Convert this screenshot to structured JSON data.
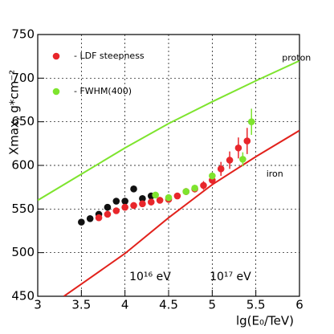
{
  "chart_data": {
    "type": "scatter",
    "ylabel": "Xmax, g*cm⁻²",
    "xlabel": "lg(E₀/TeV)",
    "annotations": [
      {
        "text": "10¹⁶ eV",
        "x": 4.05,
        "y": 472
      },
      {
        "text": "10¹⁷ eV",
        "x": 4.97,
        "y": 472
      },
      {
        "text": "proton",
        "x": 5.8,
        "y": 723
      },
      {
        "text": "iron",
        "x": 5.62,
        "y": 590
      }
    ],
    "xlim": [
      3,
      6
    ],
    "xticks": [
      3,
      3.5,
      4,
      4.5,
      5,
      5.5,
      6
    ],
    "ylim": [
      450,
      750
    ],
    "yticks": [
      450,
      500,
      550,
      600,
      650,
      700,
      750
    ],
    "grid": true,
    "series": [
      {
        "mode": "line",
        "color": "#7ee42e",
        "x": [
          3,
          3.5,
          4,
          4.5,
          5,
          5.5,
          6
        ],
        "values": [
          560,
          590,
          620,
          648,
          673,
          697,
          720
        ]
      },
      {
        "mode": "line",
        "color": "#e2221c",
        "x": [
          3.3,
          3.5,
          4,
          4.5,
          5,
          5.5,
          6
        ],
        "values": [
          450,
          464,
          499,
          540,
          578,
          610,
          640
        ]
      },
      {
        "mode": "markers",
        "color": "#111111",
        "x": [
          3.5,
          3.6,
          3.7,
          3.8,
          3.9,
          4.0,
          4.1,
          4.2,
          4.3
        ],
        "values": [
          535,
          539,
          544,
          552,
          559,
          559,
          573,
          562,
          565
        ]
      },
      {
        "name": "- LDF steepness",
        "mode": "markers",
        "color": "#e8262b",
        "x": [
          3.7,
          3.8,
          3.9,
          4.0,
          4.1,
          4.2,
          4.3,
          4.4,
          4.5,
          4.6,
          4.7,
          4.8,
          4.9,
          5.0,
          5.1,
          5.2,
          5.3,
          5.4
        ],
        "values": [
          540,
          544,
          548,
          552,
          554,
          556,
          558,
          560,
          561,
          565,
          570,
          573,
          577,
          583,
          596,
          606,
          620,
          628
        ],
        "errors": [
          3,
          3,
          3,
          3,
          3,
          3,
          3,
          3,
          3,
          3,
          4,
          4,
          5,
          6,
          8,
          10,
          12,
          15
        ]
      },
      {
        "name": "- FWHM(400)",
        "mode": "markers",
        "color": "#7ee42e",
        "x": [
          4.35,
          4.5,
          4.7,
          4.8,
          5.0,
          5.35,
          5.45
        ],
        "values": [
          566,
          563,
          570,
          574,
          588,
          607,
          650
        ],
        "errors": [
          3,
          3,
          3,
          3,
          4,
          8,
          15
        ]
      }
    ]
  }
}
